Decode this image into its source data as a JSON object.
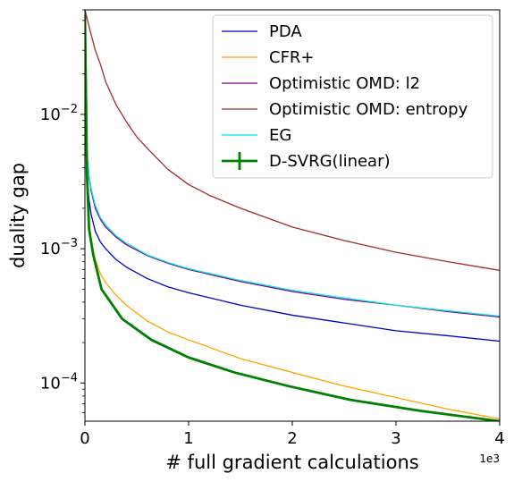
{
  "chart_data": {
    "type": "line",
    "xlabel": "# full gradient calculations",
    "ylabel": "duality gap",
    "x_offset_label": "1e3",
    "xscale": "linear",
    "yscale": "log",
    "xlim": [
      0,
      4000
    ],
    "ylim": [
      5.2e-05,
      0.06
    ],
    "x_ticks": [
      {
        "value": 0,
        "label": "0"
      },
      {
        "value": 1000,
        "label": "1"
      },
      {
        "value": 2000,
        "label": "2"
      },
      {
        "value": 3000,
        "label": "3"
      },
      {
        "value": 4000,
        "label": "4"
      }
    ],
    "y_ticks": [
      {
        "value": 0.0001,
        "base": "10",
        "exp": "−4"
      },
      {
        "value": 0.001,
        "base": "10",
        "exp": "−3"
      },
      {
        "value": 0.01,
        "base": "10",
        "exp": "−2"
      }
    ],
    "legend_position": "top-right",
    "series": [
      {
        "name": "PDA",
        "color": "#0000cc",
        "stroke": 1.3,
        "x": [
          10,
          20,
          40,
          60,
          100,
          150,
          200,
          300,
          400,
          600,
          800,
          1000,
          1500,
          2000,
          2500,
          3000,
          3500,
          4000
        ],
        "y": [
          0.0055,
          0.0035,
          0.0023,
          0.0018,
          0.00135,
          0.00112,
          0.001,
          0.00083,
          0.00073,
          0.0006,
          0.00052,
          0.00047,
          0.00038,
          0.00032,
          0.00028,
          0.000245,
          0.000225,
          0.000205
        ]
      },
      {
        "name": "CFR+",
        "color": "#ffa500",
        "stroke": 1.3,
        "x": [
          5,
          10,
          20,
          40,
          60,
          100,
          150,
          200,
          300,
          400,
          600,
          800,
          1000,
          1500,
          2000,
          2500,
          3000,
          3500,
          4000
        ],
        "y": [
          0.03,
          0.008,
          0.0032,
          0.0016,
          0.00115,
          0.00083,
          0.00065,
          0.00056,
          0.00045,
          0.00038,
          0.00029,
          0.00024,
          0.00021,
          0.000152,
          0.00012,
          9.5e-05,
          7.8e-05,
          6.4e-05,
          5.4e-05
        ]
      },
      {
        "name": "Optimistic OMD: l2",
        "color": "#800080",
        "stroke": 1.3,
        "x": [
          10,
          20,
          40,
          60,
          100,
          150,
          200,
          300,
          400,
          600,
          800,
          1000,
          1500,
          2000,
          2500,
          3000,
          3500,
          4000
        ],
        "y": [
          0.0075,
          0.005,
          0.0034,
          0.0027,
          0.002,
          0.00165,
          0.00145,
          0.00122,
          0.00107,
          0.00089,
          0.00078,
          0.0007,
          0.00057,
          0.00048,
          0.00042,
          0.00038,
          0.00034,
          0.00031
        ]
      },
      {
        "name": "Optimistic OMD: entropy",
        "color": "#a52a2a",
        "stroke": 1.3,
        "x": [
          0,
          50,
          100,
          150,
          200,
          300,
          400,
          500,
          600,
          800,
          1000,
          1200,
          1500,
          2000,
          2500,
          3000,
          3500,
          4000
        ],
        "y": [
          0.06,
          0.042,
          0.03,
          0.0235,
          0.0175,
          0.0118,
          0.0088,
          0.0068,
          0.0056,
          0.0039,
          0.003,
          0.0025,
          0.002,
          0.00145,
          0.00115,
          0.00094,
          0.0008,
          0.00069
        ]
      },
      {
        "name": "EG",
        "color": "#00e5ee",
        "stroke": 1.3,
        "x": [
          10,
          20,
          40,
          60,
          100,
          150,
          200,
          300,
          400,
          600,
          800,
          1000,
          1500,
          2000,
          2500,
          3000,
          3500,
          4000
        ],
        "y": [
          0.0078,
          0.0052,
          0.0035,
          0.0028,
          0.0021,
          0.0017,
          0.0015,
          0.00125,
          0.0011,
          0.0009,
          0.00079,
          0.00071,
          0.00058,
          0.00049,
          0.00043,
          0.00038,
          0.000345,
          0.000315
        ]
      },
      {
        "name": "D-SVRG(linear)",
        "color": "#008000",
        "stroke": 2.8,
        "errorbar": true,
        "x": [
          0,
          20,
          40,
          80,
          160,
          360,
          640,
          1000,
          1440,
          1960,
          2560,
          3240,
          4000
        ],
        "y": [
          0.055,
          0.0035,
          0.0014,
          0.0009,
          0.0005,
          0.0003,
          0.00021,
          0.000155,
          0.00012,
          9.5e-05,
          7.5e-05,
          6.2e-05,
          5.2e-05
        ]
      }
    ]
  }
}
